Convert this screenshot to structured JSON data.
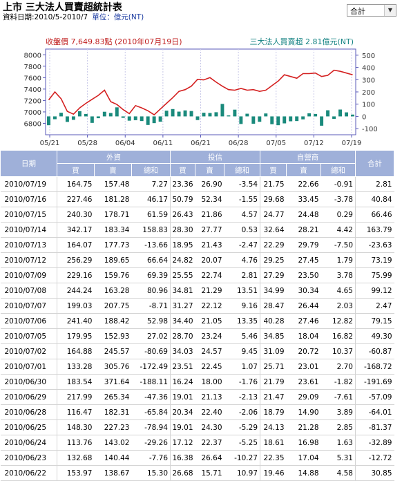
{
  "header": {
    "title": "上市 三大法人買賣超統計表",
    "date_range": "資料日期:2010/5-2010/7",
    "unit": "單位：億元(NT)"
  },
  "select": {
    "value": "合計"
  },
  "colors": {
    "bar": "#1a8a7c",
    "line": "#d42020",
    "header_bg": "#9fb0d9",
    "plot_border": "#5858b8",
    "left_legend": "#c02020",
    "right_legend": "#108080"
  },
  "chart_data": {
    "type": "bar+line",
    "left_legend": "收盤價 7,649.83點 (2010年07月19日)",
    "right_legend": "三大法人買賣超 2.81億元(NT)",
    "x_ticks": [
      "05/21",
      "05/28",
      "06/04",
      "06/11",
      "06/21",
      "06/28",
      "07/05",
      "07/12",
      "07/19"
    ],
    "y_left_ticks": [
      "8000",
      "7800",
      "7600",
      "7400",
      "7200",
      "7000",
      "6800"
    ],
    "y_right_ticks": [
      "500",
      "400",
      "300",
      "200",
      "100",
      "0",
      "-100"
    ],
    "y_left_range": [
      6600,
      8100
    ],
    "y_right_range": [
      -150,
      550
    ],
    "line_series": [
      7210,
      7350,
      7230,
      7010,
      6960,
      7070,
      7150,
      7220,
      7290,
      7380,
      7180,
      7130,
      7040,
      6970,
      7110,
      7070,
      7020,
      6950,
      7050,
      7150,
      7250,
      7360,
      7390,
      7450,
      7570,
      7560,
      7600,
      7520,
      7450,
      7390,
      7380,
      7410,
      7380,
      7390,
      7360,
      7380,
      7460,
      7540,
      7650,
      7620,
      7590,
      7670,
      7670,
      7680,
      7620,
      7640,
      7730,
      7710,
      7680,
      7650
    ],
    "bar_series": [
      -72,
      -23,
      30,
      -45,
      -28,
      43,
      20,
      -53,
      -15,
      38,
      28,
      74,
      -12,
      -35,
      -31,
      -38,
      -70,
      -55,
      -43,
      47,
      60,
      39,
      49,
      44,
      -30,
      30,
      28,
      34,
      102,
      8,
      55,
      -62,
      22,
      -60,
      -44,
      24,
      -64,
      -72,
      -57,
      -40,
      -38,
      -24,
      25,
      20,
      -76,
      50,
      -20,
      56,
      33,
      15
    ],
    "bar_note": "approximate values read from the chart"
  },
  "table": {
    "col_date": "日期",
    "groups": [
      "外資",
      "投信",
      "自營商"
    ],
    "col_total": "合計",
    "sub": [
      "買",
      "賣",
      "總和"
    ],
    "rows": [
      [
        "2010/07/19",
        "164.75",
        "157.48",
        "7.27",
        "23.36",
        "26.90",
        "-3.54",
        "21.75",
        "22.66",
        "-0.91",
        "2.81"
      ],
      [
        "2010/07/16",
        "227.46",
        "181.28",
        "46.17",
        "50.79",
        "52.34",
        "-1.55",
        "29.68",
        "33.45",
        "-3.78",
        "40.84"
      ],
      [
        "2010/07/15",
        "240.30",
        "178.71",
        "61.59",
        "26.43",
        "21.86",
        "4.57",
        "24.77",
        "24.48",
        "0.29",
        "66.46"
      ],
      [
        "2010/07/14",
        "342.17",
        "183.34",
        "158.83",
        "28.30",
        "27.77",
        "0.53",
        "32.64",
        "28.21",
        "4.42",
        "163.79"
      ],
      [
        "2010/07/13",
        "164.07",
        "177.73",
        "-13.66",
        "18.95",
        "21.43",
        "-2.47",
        "22.29",
        "29.79",
        "-7.50",
        "-23.63"
      ],
      [
        "2010/07/12",
        "256.29",
        "189.65",
        "66.64",
        "24.82",
        "20.07",
        "4.76",
        "29.25",
        "27.45",
        "1.79",
        "73.19"
      ],
      [
        "2010/07/09",
        "229.16",
        "159.76",
        "69.39",
        "25.55",
        "22.74",
        "2.81",
        "27.29",
        "23.50",
        "3.78",
        "75.99"
      ],
      [
        "2010/07/08",
        "244.24",
        "163.28",
        "80.96",
        "34.81",
        "21.29",
        "13.51",
        "34.99",
        "30.34",
        "4.65",
        "99.12"
      ],
      [
        "2010/07/07",
        "199.03",
        "207.75",
        "-8.71",
        "31.27",
        "22.12",
        "9.16",
        "28.47",
        "26.44",
        "2.03",
        "2.47"
      ],
      [
        "2010/07/06",
        "241.40",
        "188.42",
        "52.98",
        "34.40",
        "21.05",
        "13.35",
        "40.28",
        "27.46",
        "12.82",
        "79.15"
      ],
      [
        "2010/07/05",
        "179.95",
        "152.93",
        "27.02",
        "28.70",
        "23.24",
        "5.46",
        "34.85",
        "18.04",
        "16.82",
        "49.30"
      ],
      [
        "2010/07/02",
        "164.88",
        "245.57",
        "-80.69",
        "34.03",
        "24.57",
        "9.45",
        "31.09",
        "20.72",
        "10.37",
        "-60.87"
      ],
      [
        "2010/07/01",
        "133.28",
        "305.76",
        "-172.49",
        "23.51",
        "22.45",
        "1.07",
        "25.71",
        "23.01",
        "2.70",
        "-168.72"
      ],
      [
        "2010/06/30",
        "183.54",
        "371.64",
        "-188.11",
        "16.24",
        "18.00",
        "-1.76",
        "21.79",
        "23.61",
        "-1.82",
        "-191.69"
      ],
      [
        "2010/06/29",
        "217.99",
        "265.34",
        "-47.36",
        "19.01",
        "21.13",
        "-2.13",
        "21.47",
        "29.09",
        "-7.61",
        "-57.09"
      ],
      [
        "2010/06/28",
        "116.47",
        "182.31",
        "-65.84",
        "20.34",
        "22.40",
        "-2.06",
        "18.79",
        "14.90",
        "3.89",
        "-64.01"
      ],
      [
        "2010/06/25",
        "148.30",
        "227.23",
        "-78.94",
        "19.01",
        "24.30",
        "-5.29",
        "24.13",
        "21.28",
        "2.85",
        "-81.37"
      ],
      [
        "2010/06/24",
        "113.76",
        "143.02",
        "-29.26",
        "17.12",
        "22.37",
        "-5.25",
        "18.61",
        "16.98",
        "1.63",
        "-32.89"
      ],
      [
        "2010/06/23",
        "132.68",
        "140.44",
        "-7.76",
        "16.38",
        "26.64",
        "-10.27",
        "22.35",
        "17.04",
        "5.31",
        "-12.72"
      ],
      [
        "2010/06/22",
        "153.97",
        "138.67",
        "15.30",
        "26.68",
        "15.71",
        "10.97",
        "19.46",
        "14.88",
        "4.58",
        "30.85"
      ]
    ]
  }
}
